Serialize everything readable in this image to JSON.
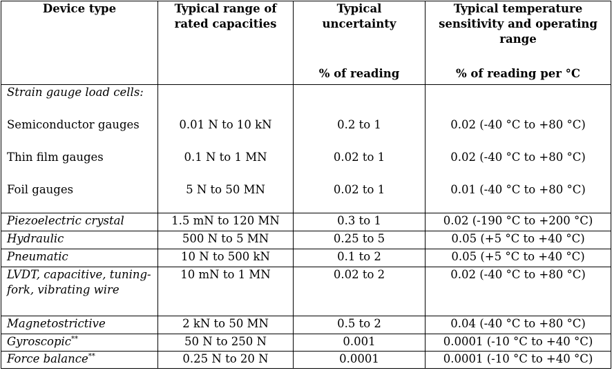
{
  "headers": [
    {
      "title": "Device type",
      "unit": ""
    },
    {
      "title": "Typical range of rated capacities",
      "unit": ""
    },
    {
      "title": "Typical uncertainty",
      "unit": "% of reading"
    },
    {
      "title": "Typical temperature sensitivity and operating range",
      "unit": "% of reading per °C"
    }
  ],
  "strain_group": {
    "label": "Strain gauge load cells:",
    "rows": [
      {
        "device": "Semiconductor gauges",
        "capacity": "0.01 N to 10 kN",
        "uncertainty": "0.2 to 1",
        "sensitivity": "0.02 (-40 °C to +80 °C)"
      },
      {
        "device": "Thin film gauges",
        "capacity": "0.1 N to 1 MN",
        "uncertainty": "0.02 to 1",
        "sensitivity": "0.02 (-40 °C to +80 °C)"
      },
      {
        "device": "Foil gauges",
        "capacity": "5 N to 50 MN",
        "uncertainty": "0.02 to 1",
        "sensitivity": "0.01 (-40 °C to +80 °C)"
      }
    ]
  },
  "rows": [
    {
      "device": "Piezoelectric crystal",
      "note": "",
      "capacity": "1.5 mN to 120 MN",
      "uncertainty": "0.3 to 1",
      "sensitivity": "0.02 (-190 °C to +200 °C)"
    },
    {
      "device": "Hydraulic",
      "note": "",
      "capacity": "500 N to 5 MN",
      "uncertainty": "0.25 to 5",
      "sensitivity": "0.05 (+5 °C to +40 °C)"
    },
    {
      "device": "Pneumatic",
      "note": "",
      "capacity": "10 N to 500 kN",
      "uncertainty": "0.1 to 2",
      "sensitivity": "0.05 (+5 °C to +40 °C)"
    },
    {
      "device": "LVDT, capacitive, tuning-fork, vibrating wire",
      "note": "",
      "capacity": "10 mN to 1 MN",
      "uncertainty": "0.02 to 2",
      "sensitivity": "0.02 (-40 °C to +80 °C)"
    },
    {
      "device": "Magnetostrictive",
      "note": "",
      "capacity": "2 kN to 50 MN",
      "uncertainty": "0.5 to 2",
      "sensitivity": "0.04 (-40 °C to +80 °C)"
    },
    {
      "device": "Gyroscopic",
      "note": "**",
      "capacity": "50 N to 250 N",
      "uncertainty": "0.001",
      "sensitivity": "0.0001 (-10 °C to +40 °C)"
    },
    {
      "device": "Force balance",
      "note": "**",
      "capacity": "0.25 N to 20 N",
      "uncertainty": "0.0001",
      "sensitivity": "0.0001 (-10 °C to +40 °C)"
    }
  ]
}
